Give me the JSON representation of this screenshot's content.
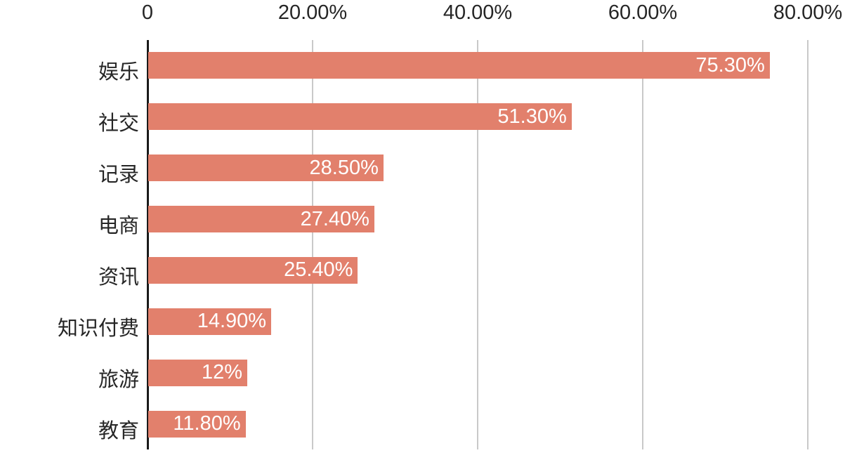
{
  "chart_data": {
    "type": "bar",
    "orientation": "horizontal",
    "title": "",
    "xlabel": "",
    "ylabel": "",
    "categories": [
      "娱乐",
      "社交",
      "记录",
      "电商",
      "资讯",
      "知识付费",
      "旅游",
      "教育"
    ],
    "values": [
      75.3,
      51.3,
      28.5,
      27.4,
      25.4,
      14.9,
      12,
      11.8
    ],
    "value_labels": [
      "75.30%",
      "51.30%",
      "28.50%",
      "27.40%",
      "25.40%",
      "14.90%",
      "12%",
      "11.80%"
    ],
    "x_ticks": [
      {
        "label": "0",
        "value": 0
      },
      {
        "label": "20.00%",
        "value": 20
      },
      {
        "label": "40.00%",
        "value": 40
      },
      {
        "label": "60.00%",
        "value": 60
      },
      {
        "label": "80.00%",
        "value": 80
      }
    ],
    "xlim": [
      0,
      80
    ],
    "axis_position": "top",
    "grid": true,
    "legend": "none",
    "colors": {
      "bar": "#e2806c",
      "value_label": "#ffffff",
      "gridline": "#c9c9c9",
      "axis_line": "#1a1a1a",
      "text": "#262626"
    }
  }
}
